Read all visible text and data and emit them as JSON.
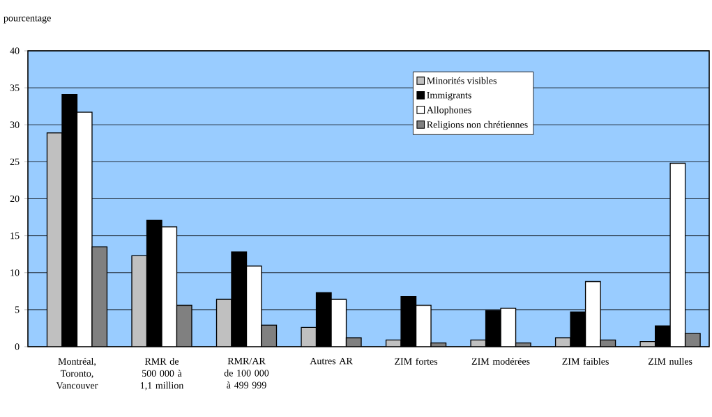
{
  "chart_data": {
    "type": "bar",
    "ylabel": "pourcentage",
    "categories": [
      "Montréal, Toronto, Vancouver",
      "RMR de 500 000 à 1,1 million",
      "RMR/AR de 100 000 à 499 999",
      "Autres AR",
      "ZIM fortes",
      "ZIM modérées",
      "ZIM faibles",
      "ZIM nulles"
    ],
    "series": [
      {
        "name": "Minorités visibles",
        "color": "#c0c0c0",
        "values": [
          28.9,
          12.3,
          6.4,
          2.6,
          0.9,
          0.9,
          1.2,
          0.7
        ]
      },
      {
        "name": "Immigrants",
        "color": "#000000",
        "values": [
          34.1,
          17.1,
          12.8,
          7.3,
          6.8,
          4.9,
          4.7,
          2.8
        ]
      },
      {
        "name": "Allophones",
        "color": "#ffffff",
        "values": [
          31.7,
          16.2,
          10.9,
          6.4,
          5.6,
          5.2,
          8.8,
          24.8
        ]
      },
      {
        "name": "Religions non chrétiennes",
        "color": "#808080",
        "values": [
          13.5,
          5.6,
          2.9,
          1.2,
          0.5,
          0.5,
          0.9,
          1.8
        ]
      }
    ],
    "ylim": [
      0,
      40
    ],
    "yticks": [
      0,
      5,
      10,
      15,
      20,
      25,
      30,
      35,
      40
    ],
    "grid": "y",
    "legend": "top right"
  }
}
